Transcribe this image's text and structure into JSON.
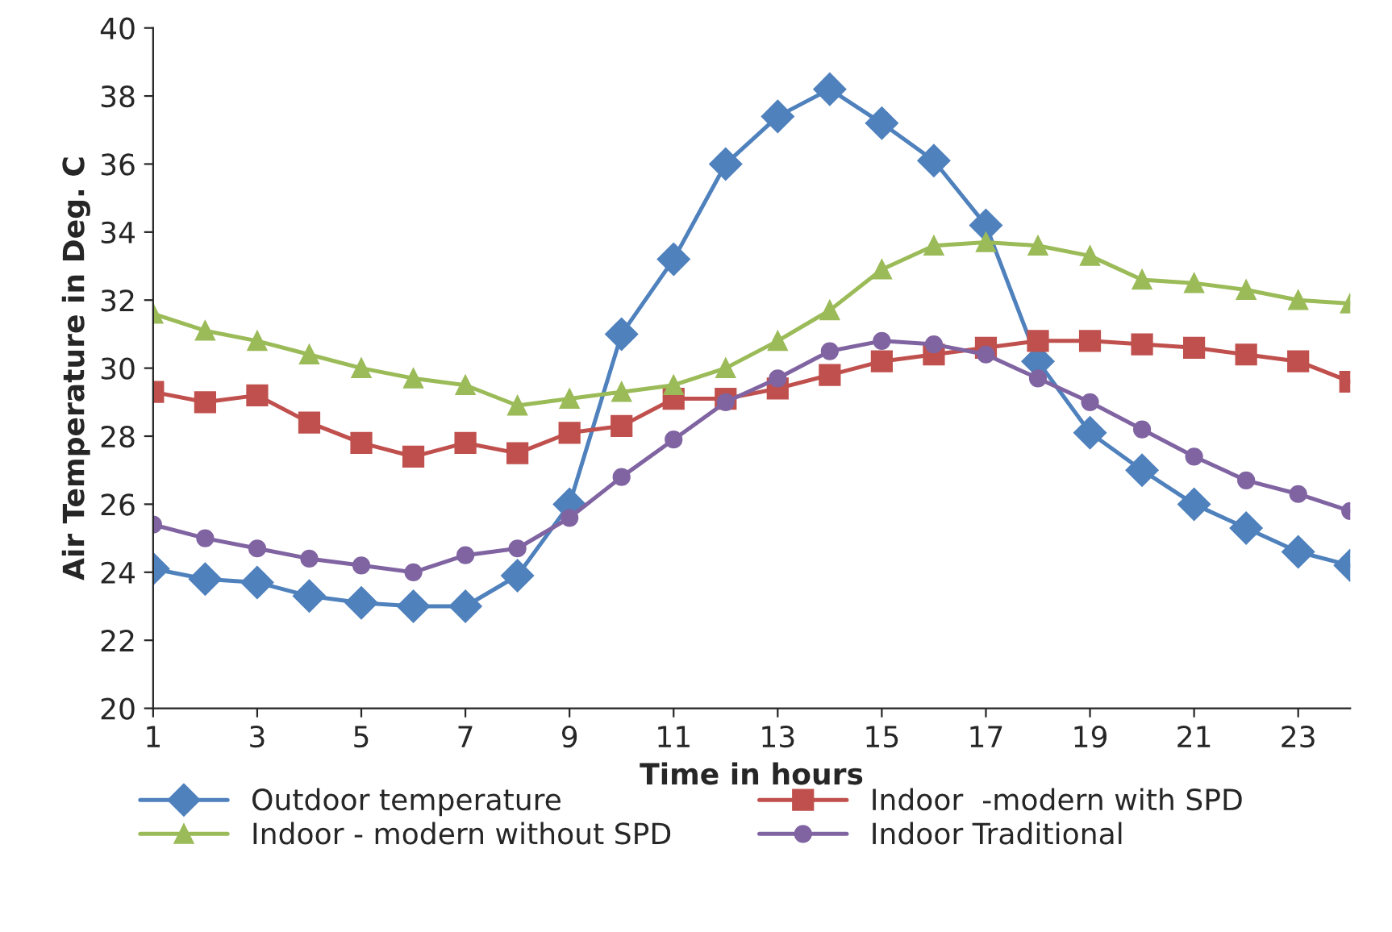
{
  "chart_data": {
    "type": "line",
    "xlabel": "Time in hours",
    "ylabel": "Air Temperature in Deg. C",
    "x": [
      1,
      2,
      3,
      4,
      5,
      6,
      7,
      8,
      9,
      10,
      11,
      12,
      13,
      14,
      15,
      16,
      17,
      18,
      19,
      20,
      21,
      22,
      23,
      24
    ],
    "xlim": [
      1,
      24
    ],
    "xticks": [
      1,
      3,
      5,
      7,
      9,
      11,
      13,
      15,
      17,
      19,
      21,
      23
    ],
    "ylim": [
      20,
      40
    ],
    "yticks": [
      20,
      22,
      24,
      26,
      28,
      30,
      32,
      34,
      36,
      38,
      40
    ],
    "grid": false,
    "legend": "bottom",
    "series": [
      {
        "name": "Outdoor temperature",
        "color": "#4f81bd",
        "marker": "diamond",
        "values": [
          24.1,
          23.8,
          23.7,
          23.3,
          23.1,
          23.0,
          23.0,
          23.9,
          26.0,
          31.0,
          33.2,
          36.0,
          37.4,
          38.2,
          37.2,
          36.1,
          34.2,
          30.2,
          28.1,
          27.0,
          26.0,
          25.3,
          24.6,
          24.2
        ]
      },
      {
        "name": "Indoor  -modern with SPD",
        "color": "#c0504d",
        "marker": "square",
        "values": [
          29.3,
          29.0,
          29.2,
          28.4,
          27.8,
          27.4,
          27.8,
          27.5,
          28.1,
          28.3,
          29.1,
          29.1,
          29.4,
          29.8,
          30.2,
          30.4,
          30.6,
          30.8,
          30.8,
          30.7,
          30.6,
          30.4,
          30.2,
          29.6
        ]
      },
      {
        "name": "Indoor - modern without SPD",
        "color": "#9bbb59",
        "marker": "triangle",
        "values": [
          31.6,
          31.1,
          30.8,
          30.4,
          30.0,
          29.7,
          29.5,
          28.9,
          29.1,
          29.3,
          29.5,
          30.0,
          30.8,
          31.7,
          32.9,
          33.6,
          33.7,
          33.6,
          33.3,
          32.6,
          32.5,
          32.3,
          32.0,
          31.9
        ]
      },
      {
        "name": "Indoor Traditional",
        "color": "#8064a2",
        "marker": "circle",
        "values": [
          25.4,
          25.0,
          24.7,
          24.4,
          24.2,
          24.0,
          24.5,
          24.7,
          25.6,
          26.8,
          27.9,
          29.0,
          29.7,
          30.5,
          30.8,
          30.7,
          30.4,
          29.7,
          29.0,
          28.2,
          27.4,
          26.7,
          26.3,
          25.8
        ]
      }
    ]
  }
}
